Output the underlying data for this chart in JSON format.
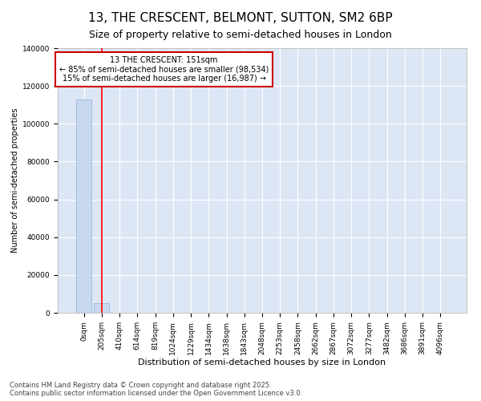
{
  "title": "13, THE CRESCENT, BELMONT, SUTTON, SM2 6BP",
  "subtitle": "Size of property relative to semi-detached houses in London",
  "xlabel": "Distribution of semi-detached houses by size in London",
  "ylabel": "Number of semi-detached properties",
  "property_label": "13 THE CRESCENT: 151sqm",
  "pct_smaller": "85% of semi-detached houses are smaller (98,534)",
  "pct_larger": "15% of semi-detached houses are larger (16,987)",
  "categories": [
    "0sqm",
    "205sqm",
    "410sqm",
    "614sqm",
    "819sqm",
    "1024sqm",
    "1229sqm",
    "1434sqm",
    "1638sqm",
    "1843sqm",
    "2048sqm",
    "2253sqm",
    "2458sqm",
    "2662sqm",
    "2867sqm",
    "3072sqm",
    "3277sqm",
    "3482sqm",
    "3686sqm",
    "3891sqm",
    "4096sqm"
  ],
  "values": [
    113000,
    5000,
    0,
    0,
    0,
    0,
    0,
    0,
    0,
    0,
    0,
    0,
    0,
    0,
    0,
    0,
    0,
    0,
    0,
    0,
    0
  ],
  "bar_color": "#c8d8ee",
  "bar_edge_color": "#8ab0d8",
  "annotation_box_color": "#ffffff",
  "annotation_box_edge_color": "#cc0000",
  "property_line_x": 1,
  "ylim": [
    0,
    140000
  ],
  "yticks": [
    0,
    20000,
    40000,
    60000,
    80000,
    100000,
    120000,
    140000
  ],
  "background_color": "#ffffff",
  "plot_bg_color": "#dde6f5",
  "grid_color": "#ffffff",
  "footer": "Contains HM Land Registry data © Crown copyright and database right 2025.\nContains public sector information licensed under the Open Government Licence v3.0.",
  "title_fontsize": 11,
  "subtitle_fontsize": 9,
  "tick_fontsize": 6.5,
  "ylabel_fontsize": 7,
  "xlabel_fontsize": 8,
  "annotation_fontsize": 7,
  "footer_fontsize": 6
}
